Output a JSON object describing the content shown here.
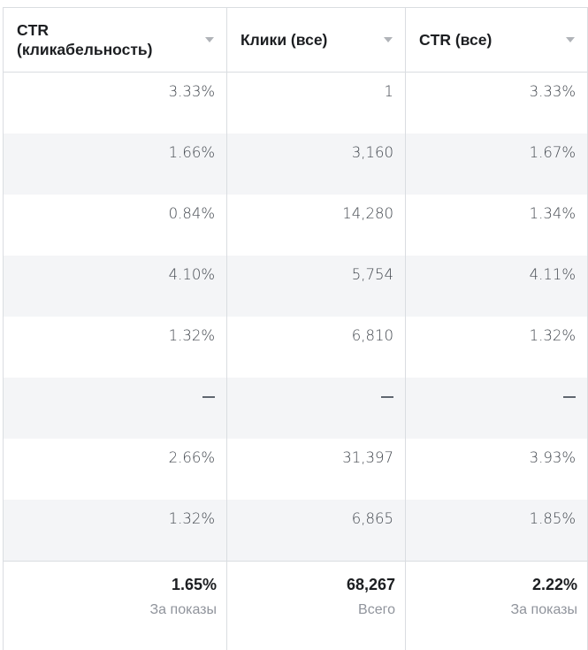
{
  "columns": [
    {
      "label": "CTR (кликабельность)",
      "line1": "CTR",
      "line2": "(кликабельность)"
    },
    {
      "label": "Клики (все)"
    },
    {
      "label": "CTR (все)"
    }
  ],
  "rows": [
    {
      "ctr": "3.33%",
      "clicks": "1",
      "ctr_all": "3.33%"
    },
    {
      "ctr": "1.66%",
      "clicks": "3,160",
      "ctr_all": "1.67%"
    },
    {
      "ctr": "0.84%",
      "clicks": "14,280",
      "ctr_all": "1.34%"
    },
    {
      "ctr": "4.10%",
      "clicks": "5,754",
      "ctr_all": "4.11%"
    },
    {
      "ctr": "1.32%",
      "clicks": "6,810",
      "ctr_all": "1.32%"
    },
    {
      "ctr": "—",
      "clicks": "—",
      "ctr_all": "—"
    },
    {
      "ctr": "2.66%",
      "clicks": "31,397",
      "ctr_all": "3.93%"
    },
    {
      "ctr": "1.32%",
      "clicks": "6,865",
      "ctr_all": "1.85%"
    }
  ],
  "totals": {
    "ctr": {
      "value": "1.65%",
      "caption": "За показы"
    },
    "clicks": {
      "value": "68,267",
      "caption": "Всего"
    },
    "ctr_all": {
      "value": "2.22%",
      "caption": "За показы"
    }
  },
  "colors": {
    "border": "#dadde1",
    "alt_row": "#f4f5f7",
    "text": "#1c1e21",
    "muted": "#90949c"
  }
}
